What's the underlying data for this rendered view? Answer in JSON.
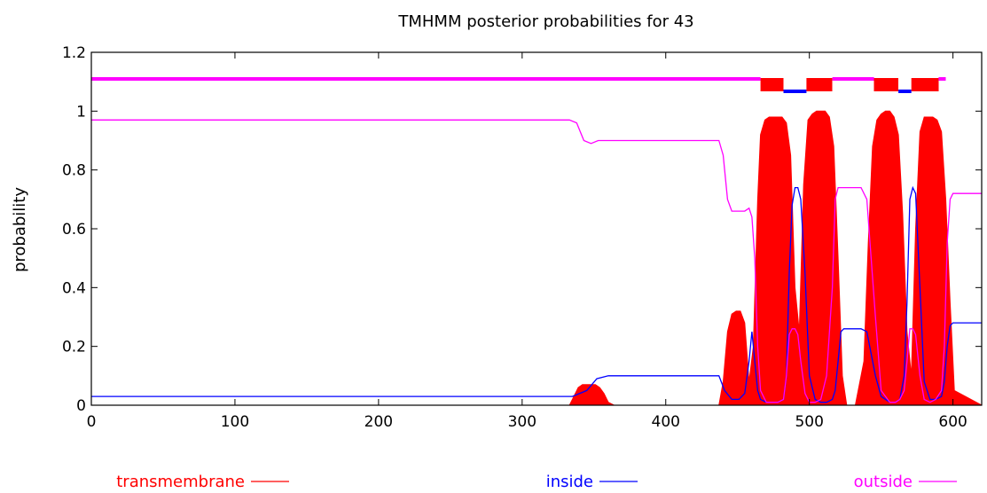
{
  "chart_data": {
    "type": "area",
    "title": "TMHMM posterior probabilities for 43",
    "xlabel": "",
    "ylabel": "probability",
    "xlim": [
      0,
      620
    ],
    "ylim": [
      0,
      1.2
    ],
    "xticks": [
      "0",
      "100",
      "200",
      "300",
      "400",
      "500",
      "600"
    ],
    "yticks": [
      "0",
      "0.2",
      "0.4",
      "0.6",
      "0.8",
      "1",
      "1.2"
    ],
    "grid": false,
    "legend_position": "bottom",
    "series": [
      {
        "name": "transmembrane",
        "color": "#ff0000",
        "style": "filled",
        "x": [
          0,
          333,
          336,
          339,
          342,
          345,
          348,
          351,
          354,
          357,
          360,
          364,
          437,
          440,
          443,
          446,
          449,
          452,
          455,
          458,
          461,
          464,
          466,
          469,
          472,
          475,
          478,
          481,
          484,
          487,
          490,
          493,
          496,
          499,
          502,
          505,
          508,
          511,
          514,
          517,
          520,
          523,
          526,
          532,
          538,
          541,
          544,
          547,
          550,
          553,
          556,
          559,
          562,
          565,
          568,
          571,
          574,
          577,
          580,
          583,
          586,
          589,
          592,
          595,
          598,
          601,
          620
        ],
        "values": [
          0,
          0,
          0.03,
          0.06,
          0.07,
          0.07,
          0.07,
          0.07,
          0.06,
          0.04,
          0.01,
          0,
          0,
          0.08,
          0.25,
          0.31,
          0.32,
          0.32,
          0.28,
          0.08,
          0.2,
          0.7,
          0.92,
          0.97,
          0.98,
          0.98,
          0.98,
          0.98,
          0.96,
          0.85,
          0.4,
          0.25,
          0.75,
          0.97,
          0.99,
          1.0,
          1.0,
          1.0,
          0.98,
          0.88,
          0.5,
          0.1,
          0,
          0,
          0.15,
          0.55,
          0.88,
          0.97,
          0.99,
          1.0,
          1.0,
          0.98,
          0.92,
          0.65,
          0.25,
          0.1,
          0.6,
          0.93,
          0.98,
          0.98,
          0.98,
          0.97,
          0.93,
          0.7,
          0.35,
          0.05,
          0
        ]
      },
      {
        "name": "inside",
        "color": "#0000ff",
        "x": [
          0,
          335,
          345,
          352,
          360,
          437,
          441,
          446,
          451,
          455,
          458,
          460,
          462,
          464,
          466,
          470,
          474,
          478,
          482,
          484,
          486,
          488,
          490,
          492,
          494,
          497,
          500,
          504,
          508,
          512,
          516,
          518,
          520,
          522,
          524,
          528,
          532,
          536,
          540,
          546,
          550,
          556,
          560,
          563,
          566,
          568,
          570,
          572,
          574,
          577,
          580,
          584,
          588,
          592,
          594,
          596,
          598,
          600,
          620
        ],
        "values": [
          0.03,
          0.03,
          0.05,
          0.09,
          0.1,
          0.1,
          0.05,
          0.02,
          0.02,
          0.04,
          0.15,
          0.25,
          0.15,
          0.05,
          0.02,
          0.01,
          0.01,
          0.01,
          0.02,
          0.1,
          0.45,
          0.68,
          0.74,
          0.74,
          0.7,
          0.45,
          0.1,
          0.02,
          0.01,
          0.01,
          0.02,
          0.05,
          0.15,
          0.25,
          0.26,
          0.26,
          0.26,
          0.26,
          0.25,
          0.1,
          0.03,
          0.01,
          0.01,
          0.02,
          0.1,
          0.35,
          0.7,
          0.74,
          0.72,
          0.4,
          0.08,
          0.02,
          0.02,
          0.03,
          0.08,
          0.2,
          0.27,
          0.28,
          0.28
        ]
      },
      {
        "name": "outside",
        "color": "#ff00ff",
        "x": [
          0,
          333,
          338,
          343,
          348,
          353,
          437,
          440,
          443,
          446,
          451,
          455,
          458,
          460,
          462,
          464,
          466,
          470,
          474,
          478,
          482,
          484,
          486,
          488,
          490,
          492,
          494,
          497,
          500,
          504,
          508,
          512,
          516,
          518,
          520,
          522,
          524,
          528,
          536,
          540,
          546,
          550,
          556,
          560,
          563,
          566,
          568,
          570,
          572,
          574,
          577,
          580,
          584,
          588,
          592,
          594,
          596,
          598,
          600,
          620
        ],
        "values": [
          0.97,
          0.97,
          0.96,
          0.9,
          0.89,
          0.9,
          0.9,
          0.85,
          0.7,
          0.66,
          0.66,
          0.66,
          0.67,
          0.64,
          0.5,
          0.2,
          0.05,
          0.01,
          0.01,
          0.01,
          0.02,
          0.1,
          0.24,
          0.26,
          0.26,
          0.24,
          0.15,
          0.04,
          0.01,
          0.01,
          0.02,
          0.1,
          0.4,
          0.7,
          0.74,
          0.74,
          0.74,
          0.74,
          0.74,
          0.7,
          0.3,
          0.05,
          0.01,
          0.01,
          0.02,
          0.05,
          0.15,
          0.26,
          0.26,
          0.24,
          0.1,
          0.02,
          0.01,
          0.02,
          0.05,
          0.2,
          0.55,
          0.7,
          0.72,
          0.72
        ]
      }
    ],
    "topology": [
      {
        "type": "outside",
        "start": 0,
        "end": 466
      },
      {
        "type": "transmembrane",
        "start": 466,
        "end": 482
      },
      {
        "type": "inside",
        "start": 482,
        "end": 498
      },
      {
        "type": "transmembrane",
        "start": 498,
        "end": 516
      },
      {
        "type": "outside",
        "start": 516,
        "end": 545
      },
      {
        "type": "transmembrane",
        "start": 545,
        "end": 562
      },
      {
        "type": "inside",
        "start": 562,
        "end": 571
      },
      {
        "type": "transmembrane",
        "start": 571,
        "end": 590
      },
      {
        "type": "outside",
        "start": 590,
        "end": 595
      }
    ]
  }
}
